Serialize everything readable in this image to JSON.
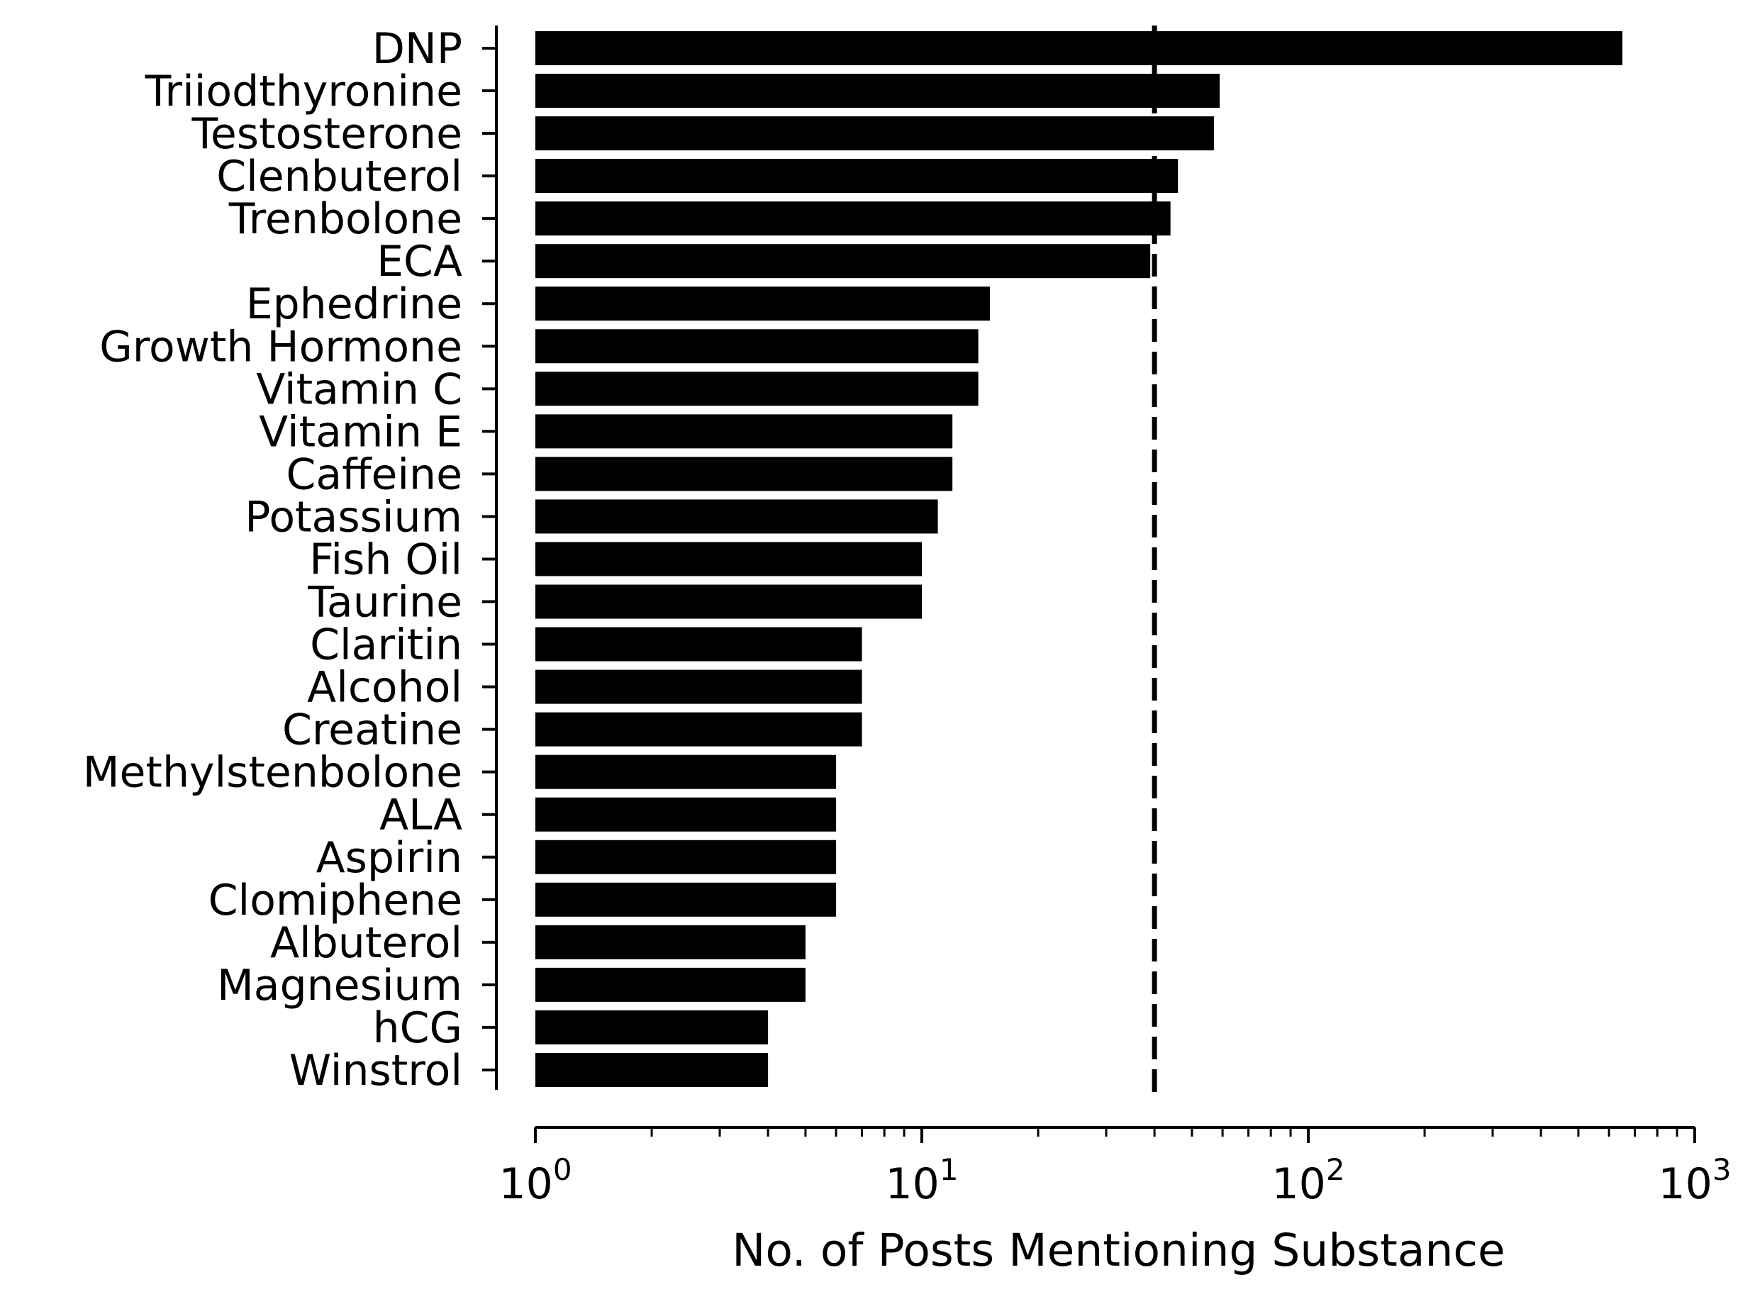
{
  "chart_data": {
    "type": "bar",
    "orientation": "horizontal",
    "title": "",
    "xlabel": "No. of Posts Mentioning Substance",
    "ylabel": "",
    "xscale": "log",
    "xlim": [
      1,
      1000
    ],
    "xticks": [
      {
        "value": 1,
        "base": "10",
        "exp": "0"
      },
      {
        "value": 10,
        "base": "10",
        "exp": "1"
      },
      {
        "value": 100,
        "base": "10",
        "exp": "2"
      },
      {
        "value": 1000,
        "base": "10",
        "exp": "3"
      }
    ],
    "grid": false,
    "reference_line": {
      "value": 40,
      "style": "dashed"
    },
    "bar_color": "#000000",
    "categories": [
      "DNP",
      "Triiodthyronine",
      "Testosterone",
      "Clenbuterol",
      "Trenbolone",
      "ECA",
      "Ephedrine",
      "Growth Hormone",
      "Vitamin C",
      "Vitamin E",
      "Caffeine",
      "Potassium",
      "Fish Oil",
      "Taurine",
      "Claritin",
      "Alcohol",
      "Creatine",
      "Methylstenbolone",
      "ALA",
      "Aspirin",
      "Clomiphene",
      "Albuterol",
      "Magnesium",
      "hCG",
      "Winstrol"
    ],
    "values": [
      650,
      59,
      57,
      46,
      44,
      39,
      15,
      14,
      14,
      12,
      12,
      11,
      10,
      10,
      7,
      7,
      7,
      6,
      6,
      6,
      6,
      5,
      5,
      4,
      4
    ]
  }
}
